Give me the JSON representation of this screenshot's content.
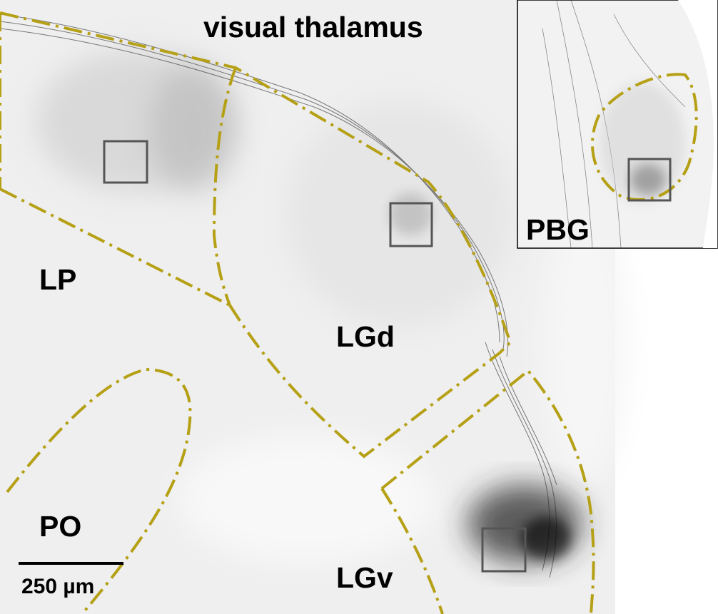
{
  "title": "visual thalamus",
  "regions": {
    "lp": "LP",
    "lgd": "LGd",
    "po": "PO",
    "lgv": "LGv",
    "pbg": "PBG"
  },
  "scale_bar": {
    "label": "250 µm"
  },
  "colors": {
    "background_tissue": "#efefef",
    "boundary": "#b5a016",
    "roi_box": "#555555",
    "label_text": "#000000",
    "fibers": "#1a1a1a"
  }
}
